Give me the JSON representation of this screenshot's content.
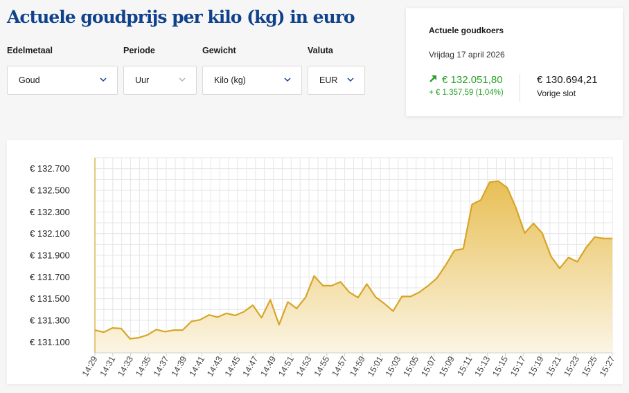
{
  "page": {
    "title": "Actuele goudprijs per kilo (kg) in euro"
  },
  "filters": [
    {
      "label": "Edelmetaal",
      "value": "Goud",
      "name": "edelmetaal"
    },
    {
      "label": "Periode",
      "value": "Uur",
      "name": "periode"
    },
    {
      "label": "Gewicht",
      "value": "Kilo (kg)",
      "name": "gewicht"
    },
    {
      "label": "Valuta",
      "value": "EUR",
      "name": "valuta"
    }
  ],
  "rate_card": {
    "title": "Actuele goudkoers",
    "date": "Vrijdag 17 april 2026",
    "current_price": "€ 132.051,80",
    "change": "+ € 1.357,59 (1,04%)",
    "previous_price": "€ 130.694,21",
    "previous_label": "Vorige slot",
    "trend_icon": "arrow-up-right-icon",
    "up_color": "#2aa02a"
  },
  "chart_data": {
    "type": "area",
    "ylim": [
      131000,
      132800
    ],
    "y_ticks": [
      131100,
      131300,
      131500,
      131700,
      131900,
      132100,
      132300,
      132500,
      132700
    ],
    "y_tick_labels": [
      "€ 131.100",
      "€ 131.300",
      "€ 131.500",
      "€ 131.700",
      "€ 131.900",
      "€ 132.100",
      "€ 132.300",
      "€ 132.500",
      "€ 132.700"
    ],
    "x_tick_labels": [
      "14:29",
      "14:31",
      "14:33",
      "14:35",
      "14:37",
      "14:39",
      "14:41",
      "14:43",
      "14:45",
      "14:47",
      "14:49",
      "14:51",
      "14:53",
      "14:55",
      "14:57",
      "14:59",
      "15:01",
      "15:03",
      "15:05",
      "15:07",
      "15:09",
      "15:11",
      "15:13",
      "15:15",
      "15:17",
      "15:19",
      "15:21",
      "15:23",
      "15:25",
      "15:27"
    ],
    "x_start": "14:29",
    "x_end": "15:27",
    "series": [
      {
        "values": [
          131210,
          131190,
          131230,
          131225,
          131130,
          131140,
          131165,
          131215,
          131195,
          131210,
          131210,
          131290,
          131305,
          131350,
          131330,
          131365,
          131345,
          131380,
          131440,
          131325,
          131490,
          131260,
          131470,
          131410,
          131510,
          131710,
          131620,
          131620,
          131655,
          131560,
          131510,
          131635,
          131515,
          131455,
          131385,
          131520,
          131520,
          131560,
          131620,
          131690,
          131810,
          131945,
          131960,
          132370,
          132410,
          132575,
          132585,
          132525,
          132340,
          132105,
          132195,
          132105,
          131890,
          131780,
          131880,
          131840,
          131970,
          132070,
          132055,
          132055
        ]
      }
    ],
    "line_color": "#d7a526",
    "fill_color_top": "#e8bf55",
    "fill_color_bottom": "#fbf5e4",
    "grid": true,
    "legend": "none"
  }
}
